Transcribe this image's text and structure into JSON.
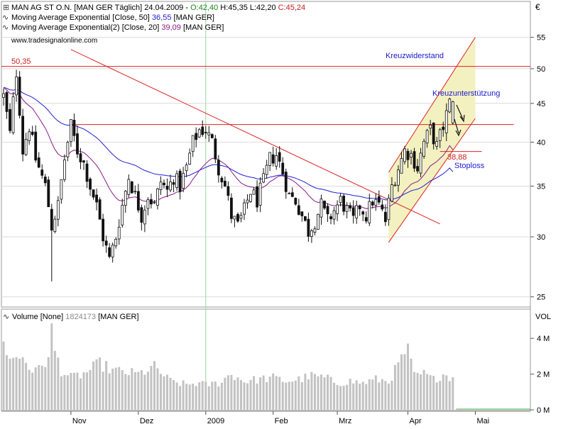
{
  "colors": {
    "ema50": "#1f1fd0",
    "ema20": "#8b1a8b",
    "resistance": "#dd2222",
    "trend": "#dd2222",
    "channel": "#dd2222",
    "channel_fill": "#f3f1c0",
    "annotation_blue": "#1a1acc",
    "candle": "#111111",
    "volume_bar": "#c2c2c2",
    "grid": "#dcdcdc",
    "vline_2009": "#9bd49b"
  },
  "header": {
    "line1_prefix": "MAN AG ST O.N. [MAN GER  Täglich] 24.04.2009 - ",
    "open": "O:42,40",
    "hl": "H:45,35 L:42,20",
    "close": "C:45,24",
    "line2_prefix": "Moving Average Exponential [Close, 50]",
    "line2_value": "36,55",
    "line2_suffix": "[MAN GER]",
    "line3_prefix": "Moving Average Exponential(2) [Close, 20]",
    "line3_value": "39,09",
    "line3_suffix": "[MAN GER]",
    "source": "www.tradesignalonline.com"
  },
  "volume_header": {
    "prefix": "Volume [None]",
    "value": "1824173",
    "suffix": "[MAN GER]"
  },
  "axis": {
    "currency": "€",
    "volume_unit": "VOL"
  },
  "labels": {
    "resistance_value": "50,35",
    "kreuzwiderstand": "Kreuzwiderstand",
    "kreuzunterstuetzung": "Kreuzunterstützung",
    "stop_value": "38,88",
    "stoploss": "Stoploss"
  },
  "chart_data": [
    {
      "type": "candlestick",
      "scale": "log",
      "ylim": [
        24.5,
        58
      ],
      "yticks": [
        {
          "value": 25,
          "label": "25"
        },
        {
          "value": 30,
          "label": "30"
        },
        {
          "value": 35,
          "label": "35"
        },
        {
          "value": 40,
          "label": "40"
        },
        {
          "value": 45,
          "label": "45"
        },
        {
          "value": 50,
          "label": "50"
        },
        {
          "value": 55,
          "label": "55"
        }
      ],
      "x_domain": [
        0,
        160
      ],
      "xticks": [
        {
          "index": 21,
          "label": "Nov"
        },
        {
          "index": 42,
          "label": "Dez"
        },
        {
          "index": 63,
          "label": "2009"
        },
        {
          "index": 84,
          "label": "Feb"
        },
        {
          "index": 104,
          "label": "Mrz"
        },
        {
          "index": 126,
          "label": "Apr"
        },
        {
          "index": 147,
          "label": "Mai"
        }
      ],
      "anchors": [
        [
          0,
          46
        ],
        [
          2,
          41
        ],
        [
          4,
          49.5
        ],
        [
          6,
          39
        ],
        [
          8,
          42
        ],
        [
          10,
          38
        ],
        [
          13,
          35
        ],
        [
          15,
          31
        ],
        [
          17,
          33
        ],
        [
          19,
          38
        ],
        [
          21,
          42
        ],
        [
          23,
          39
        ],
        [
          25,
          37.5
        ],
        [
          27,
          35
        ],
        [
          29,
          33
        ],
        [
          31,
          30
        ],
        [
          33,
          28
        ],
        [
          35,
          30
        ],
        [
          37,
          33
        ],
        [
          39,
          36
        ],
        [
          41,
          34
        ],
        [
          43,
          32
        ],
        [
          45,
          34
        ],
        [
          47,
          33
        ],
        [
          49,
          35.5
        ],
        [
          51,
          34.5
        ],
        [
          53,
          36
        ],
        [
          55,
          35
        ],
        [
          57,
          37
        ],
        [
          59,
          40
        ],
        [
          61,
          41.5
        ],
        [
          63,
          41.5
        ],
        [
          65,
          40
        ],
        [
          67,
          37
        ],
        [
          69,
          35
        ],
        [
          71,
          32
        ],
        [
          73,
          31
        ],
        [
          75,
          32.5
        ],
        [
          77,
          34.5
        ],
        [
          79,
          33.5
        ],
        [
          81,
          35.5
        ],
        [
          83,
          38
        ],
        [
          85,
          38.5
        ],
        [
          87,
          36.5
        ],
        [
          89,
          34
        ],
        [
          91,
          33.5
        ],
        [
          93,
          32
        ],
        [
          95,
          30.5
        ],
        [
          97,
          31.5
        ],
        [
          99,
          33
        ],
        [
          101,
          31.5
        ],
        [
          103,
          32.5
        ],
        [
          105,
          33.5
        ],
        [
          107,
          32.5
        ],
        [
          109,
          31.5
        ],
        [
          111,
          33
        ],
        [
          113,
          32
        ],
        [
          115,
          33.5
        ],
        [
          117,
          33
        ],
        [
          119,
          31.5
        ],
        [
          121,
          35
        ],
        [
          123,
          37
        ],
        [
          125,
          39
        ],
        [
          127,
          38.5
        ],
        [
          129,
          37
        ],
        [
          131,
          40
        ],
        [
          133,
          41.5
        ],
        [
          135,
          39.5
        ],
        [
          137,
          42
        ],
        [
          139,
          45
        ],
        [
          140,
          45.2
        ]
      ],
      "volume_anchors": [
        [
          0,
          3.6
        ],
        [
          3,
          2.8
        ],
        [
          6,
          3.0
        ],
        [
          8,
          2.4
        ],
        [
          10,
          2.1
        ],
        [
          12,
          2.6
        ],
        [
          14,
          2.8
        ],
        [
          15,
          4.4
        ],
        [
          16,
          3.3
        ],
        [
          18,
          2.2
        ],
        [
          21,
          1.8
        ],
        [
          25,
          2.0
        ],
        [
          30,
          2.6
        ],
        [
          34,
          2.2
        ],
        [
          38,
          2.1
        ],
        [
          42,
          2.0
        ],
        [
          47,
          2.4
        ],
        [
          52,
          1.6
        ],
        [
          57,
          1.4
        ],
        [
          60,
          1.5
        ],
        [
          63,
          1.4
        ],
        [
          67,
          1.5
        ],
        [
          71,
          2.0
        ],
        [
          75,
          1.6
        ],
        [
          79,
          1.7
        ],
        [
          84,
          1.8
        ],
        [
          88,
          1.6
        ],
        [
          92,
          1.7
        ],
        [
          96,
          1.9
        ],
        [
          100,
          1.8
        ],
        [
          104,
          1.5
        ],
        [
          108,
          1.6
        ],
        [
          112,
          1.5
        ],
        [
          116,
          1.7
        ],
        [
          120,
          1.6
        ],
        [
          123,
          2.5
        ],
        [
          125,
          3.2
        ],
        [
          126,
          3.3
        ],
        [
          128,
          1.9
        ],
        [
          131,
          2.0
        ],
        [
          134,
          1.7
        ],
        [
          137,
          2.0
        ],
        [
          140,
          1.8
        ]
      ],
      "ema50_last": 36.55,
      "ema20_last": 39.09,
      "resistance_level": 50.35,
      "cross_resistance_level": 42.2,
      "stop_level": 38.88,
      "trend_line": [
        [
          21,
          53
        ],
        [
          136,
          31.2
        ]
      ],
      "channel_lower": [
        [
          120,
          29.5
        ],
        [
          147,
          43
        ]
      ],
      "channel_upper": [
        [
          120,
          36.5
        ],
        [
          147,
          55
        ]
      ],
      "stop_segment": [
        136,
        149
      ]
    },
    {
      "type": "bar",
      "series_name": "Volume",
      "ylim": [
        0,
        4.8
      ],
      "yticks": [
        {
          "value": 0,
          "label": "0 M"
        },
        {
          "value": 2,
          "label": "2 M"
        },
        {
          "value": 4,
          "label": "4 M"
        }
      ],
      "last_value": 1824173
    }
  ]
}
